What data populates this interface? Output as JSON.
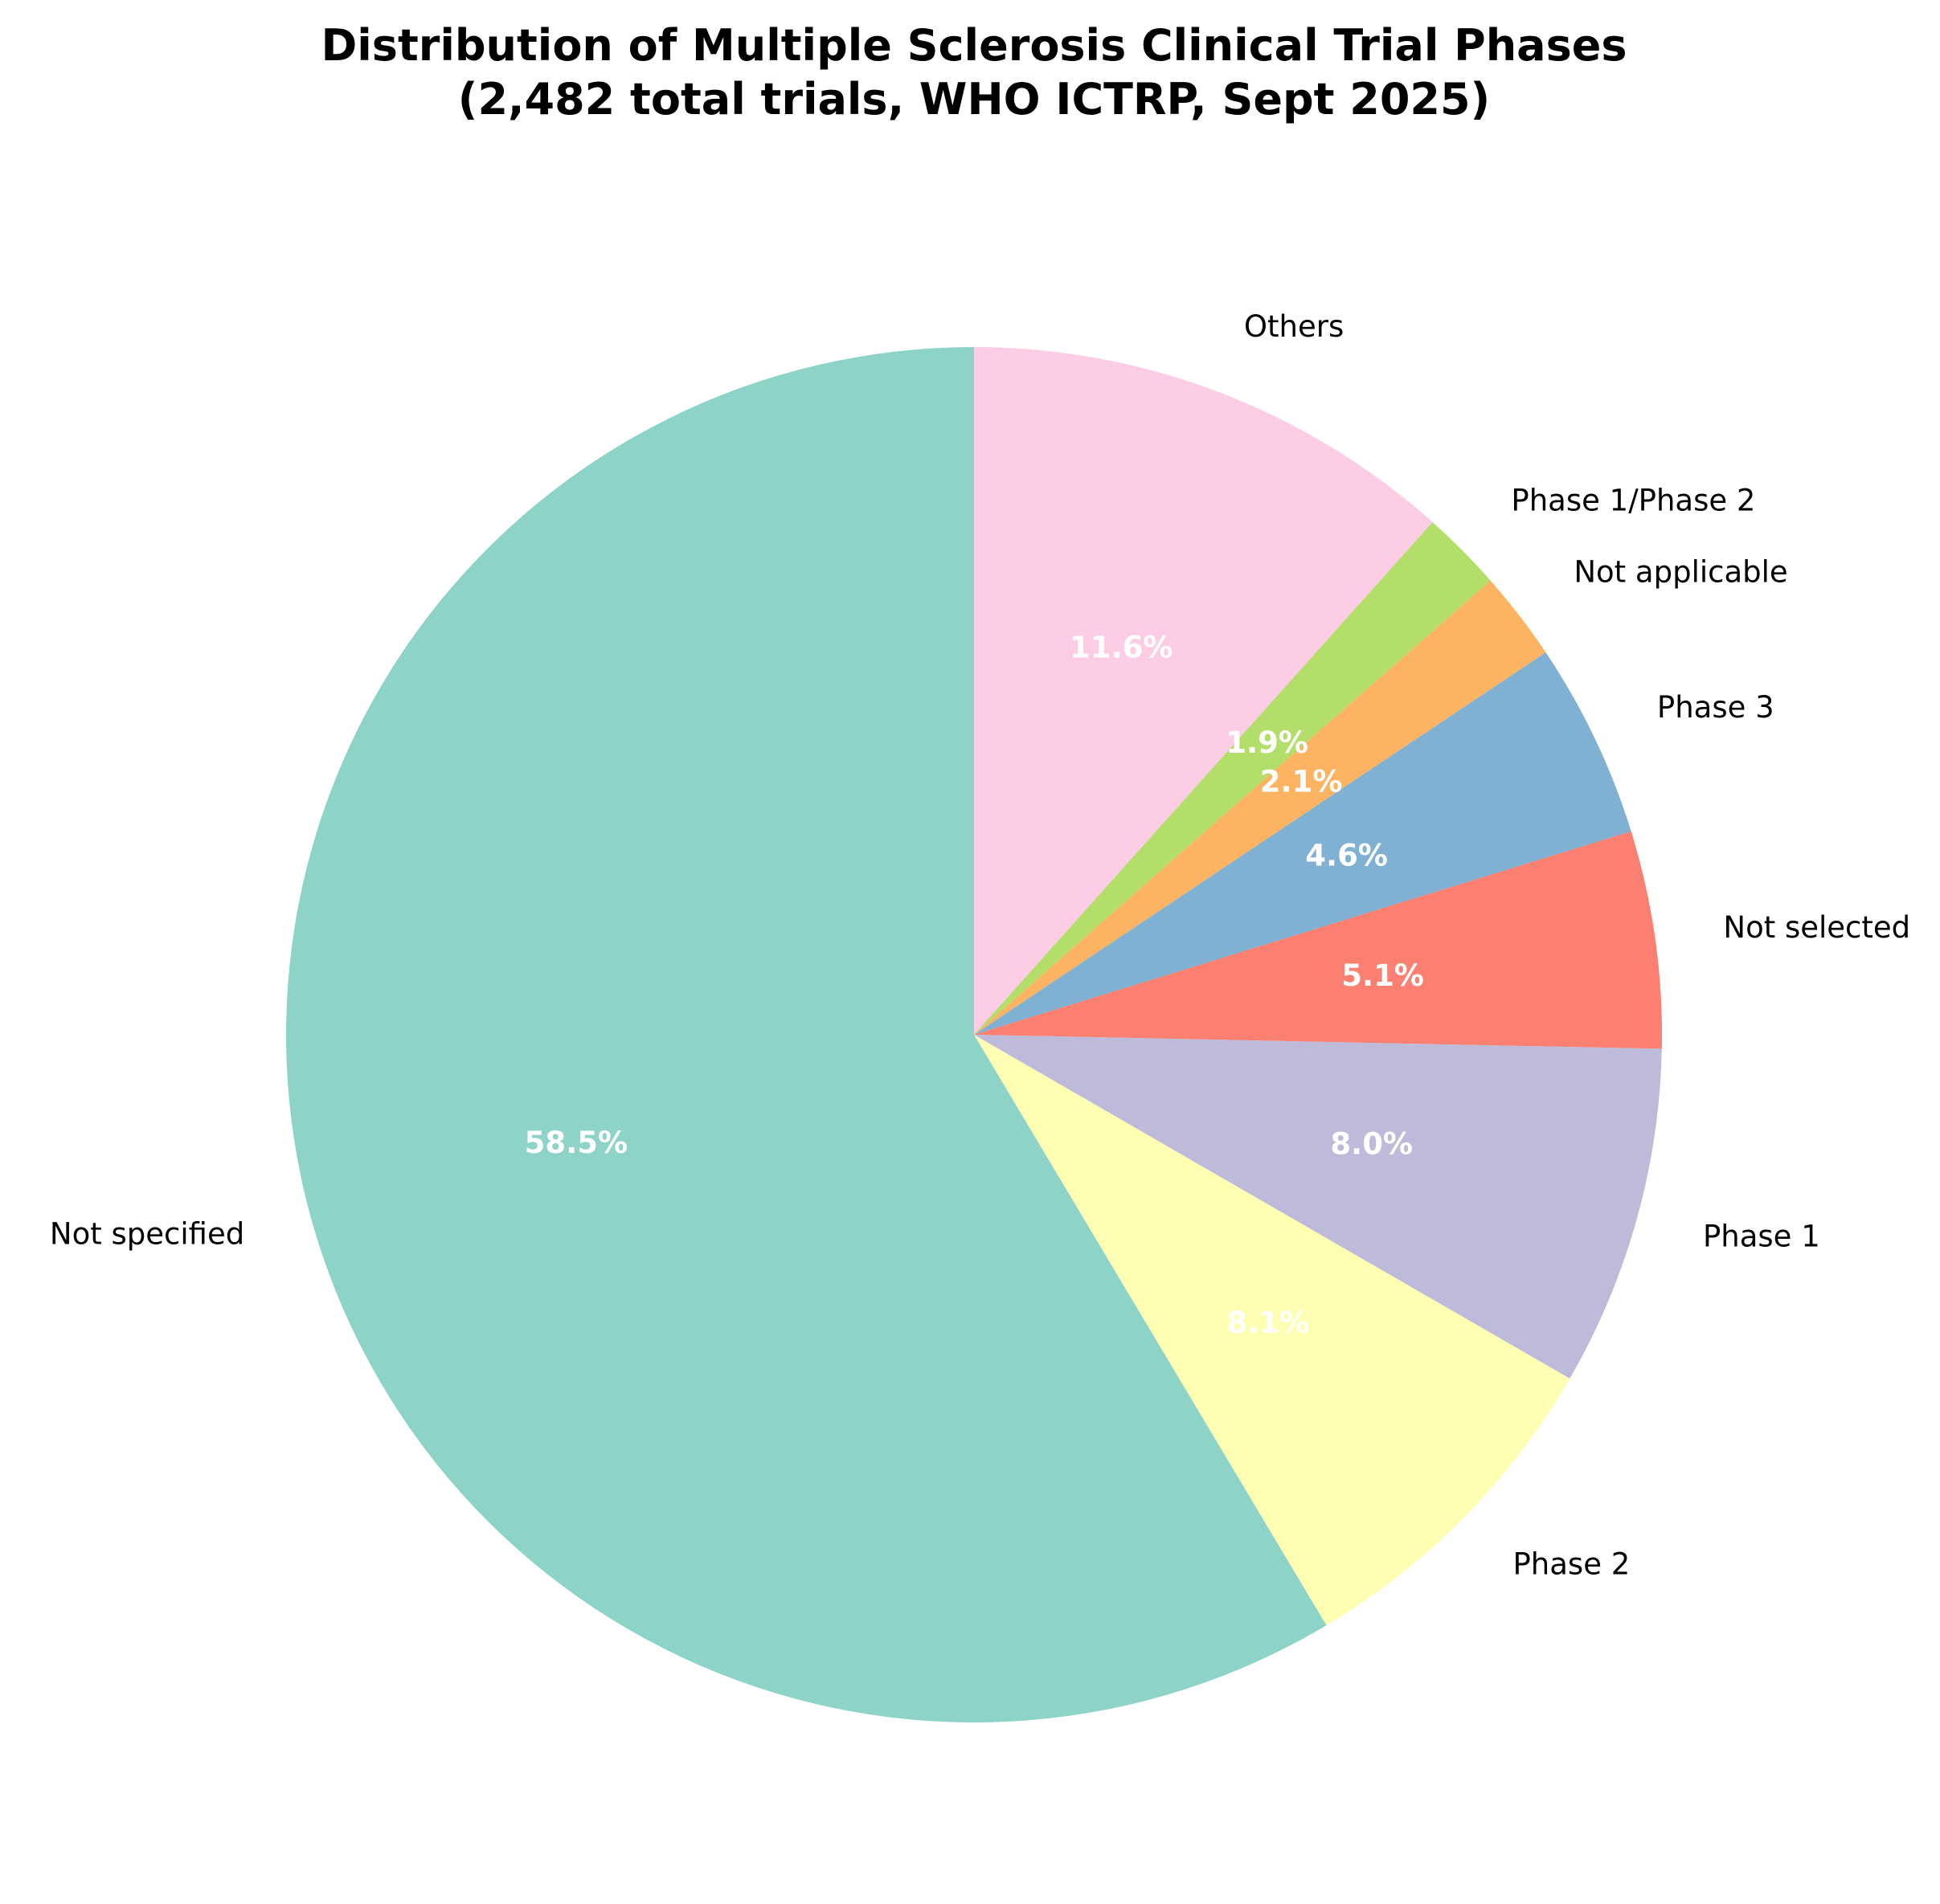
{
  "chart_data": {
    "type": "pie",
    "title": "Distribution of Multiple Sclerosis Clinical Trial Phases",
    "subtitle": "(2,482 total trials, WHO ICTRP, Sept 2025)",
    "start_angle_deg": 90,
    "direction": "clockwise",
    "slices": [
      {
        "label": "Others",
        "value": 11.6,
        "pct_label": "11.6%",
        "color": "#fccde5"
      },
      {
        "label": "Phase 1/Phase 2",
        "value": 1.9,
        "pct_label": "1.9%",
        "color": "#b3de69"
      },
      {
        "label": "Not applicable",
        "value": 2.1,
        "pct_label": "2.1%",
        "color": "#fdb462"
      },
      {
        "label": "Phase 3",
        "value": 4.6,
        "pct_label": "4.6%",
        "color": "#80b1d3"
      },
      {
        "label": "Not selected",
        "value": 5.1,
        "pct_label": "5.1%",
        "color": "#fb8072"
      },
      {
        "label": "Phase 1",
        "value": 8.0,
        "pct_label": "8.0%",
        "color": "#bebada"
      },
      {
        "label": "Phase 2",
        "value": 8.1,
        "pct_label": "8.1%",
        "color": "#ffffb3"
      },
      {
        "label": "Not specified",
        "value": 58.5,
        "pct_label": "58.5%",
        "color": "#8dd3c7"
      }
    ]
  }
}
